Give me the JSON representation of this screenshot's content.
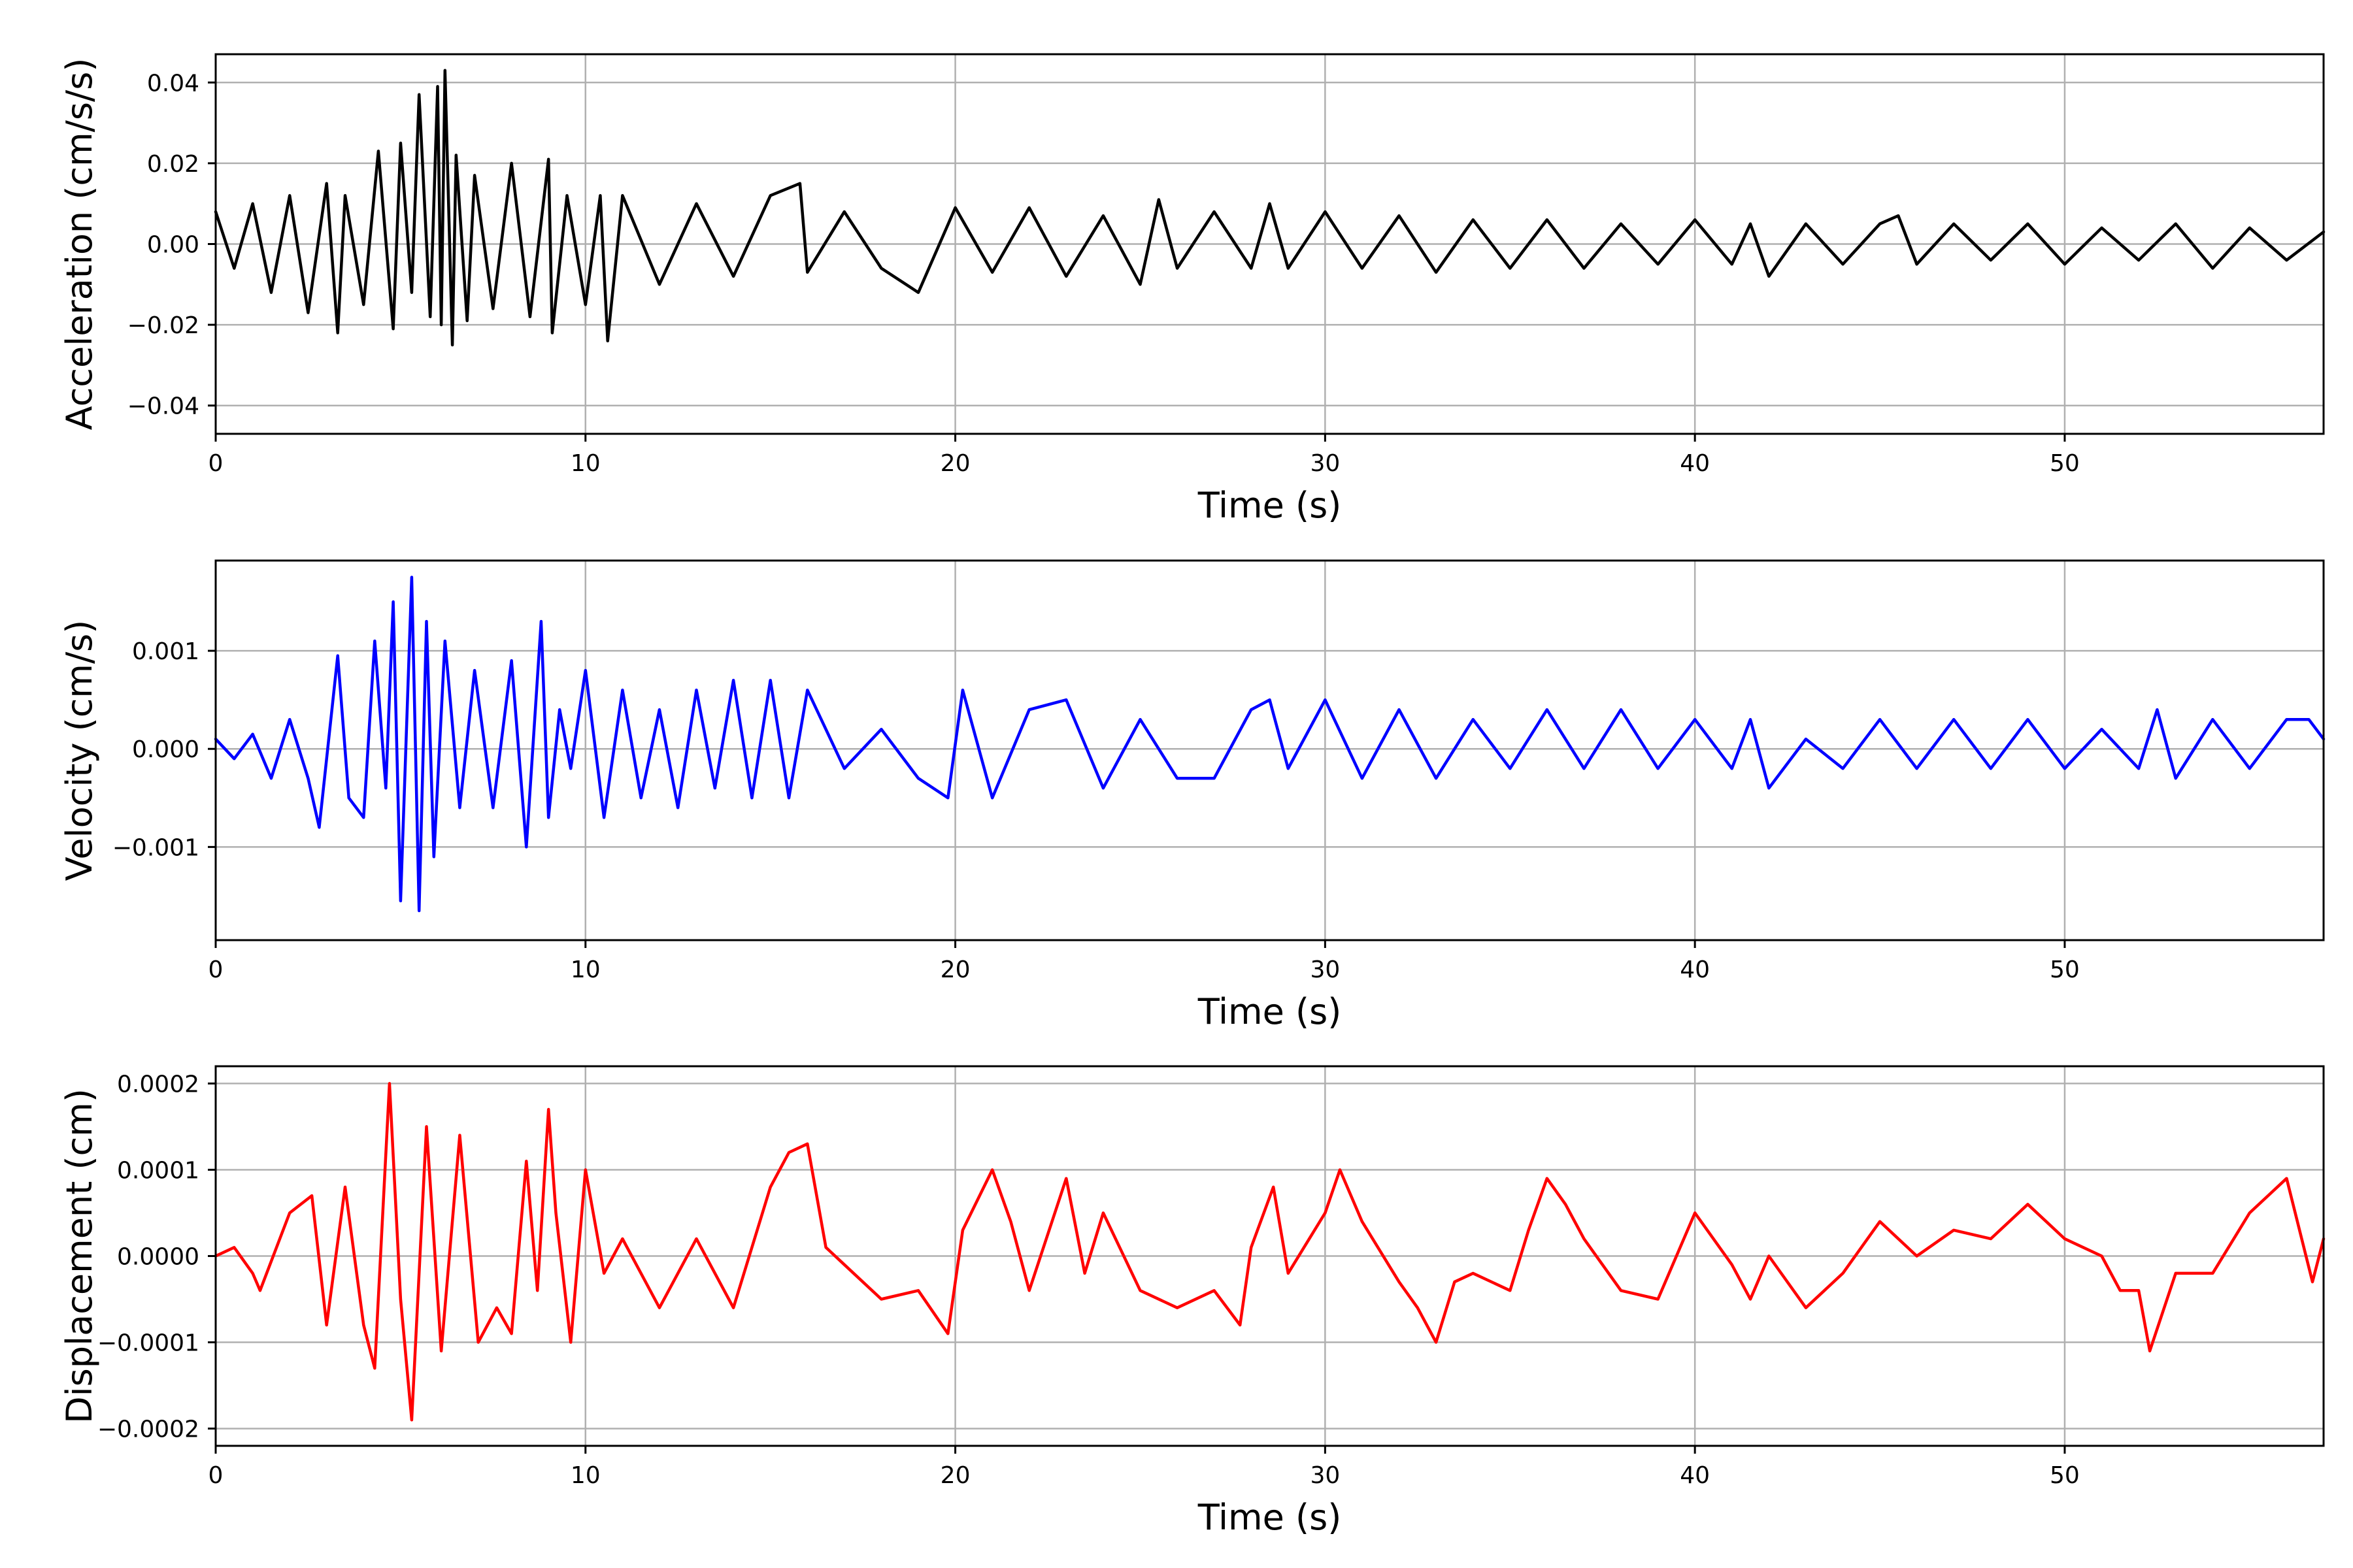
{
  "chart_data": [
    {
      "type": "line",
      "title": "",
      "xlabel": "Time (s)",
      "ylabel": "Acceleration (cm/s/s)",
      "xlim": [
        0,
        57
      ],
      "ylim": [
        -0.047,
        0.047
      ],
      "grid": true,
      "color": "#000000",
      "xticks": [
        0,
        10,
        20,
        30,
        40,
        50
      ],
      "xtick_labels": [
        "0",
        "10",
        "20",
        "30",
        "40",
        "50"
      ],
      "yticks": [
        0.04,
        0.02,
        0.0,
        -0.02,
        -0.04
      ],
      "ytick_labels": [
        "0.04",
        "0.02",
        "0.00",
        "−0.02",
        "−0.04"
      ],
      "series": [
        {
          "x": [
            0,
            0.5,
            1,
            1.5,
            2,
            2.5,
            3,
            3.3,
            3.5,
            4,
            4.4,
            4.8,
            5,
            5.3,
            5.5,
            5.8,
            6,
            6.1,
            6.2,
            6.4,
            6.5,
            6.8,
            7,
            7.5,
            8,
            8.5,
            9,
            9.1,
            9.5,
            10,
            10.4,
            10.6,
            11,
            12,
            13,
            14,
            15,
            15.8,
            16,
            17,
            18,
            19,
            20,
            21,
            22,
            23,
            24,
            25,
            25.5,
            26,
            27,
            28,
            28.5,
            29,
            30,
            31,
            32,
            33,
            34,
            35,
            36,
            37,
            38,
            39,
            40,
            41,
            41.5,
            42,
            43,
            44,
            45,
            45.5,
            46,
            47,
            48,
            49,
            50,
            51,
            52,
            53,
            54,
            55,
            56,
            57
          ],
          "y": [
            0.008,
            -0.006,
            0.01,
            -0.012,
            0.012,
            -0.017,
            0.015,
            -0.022,
            0.012,
            -0.015,
            0.023,
            -0.021,
            0.025,
            -0.012,
            0.037,
            -0.018,
            0.039,
            -0.02,
            0.043,
            -0.025,
            0.022,
            -0.019,
            0.017,
            -0.016,
            0.02,
            -0.018,
            0.021,
            -0.022,
            0.012,
            -0.015,
            0.012,
            -0.024,
            0.012,
            -0.01,
            0.01,
            -0.008,
            0.012,
            0.015,
            -0.007,
            0.008,
            -0.006,
            -0.012,
            0.009,
            -0.007,
            0.009,
            -0.008,
            0.007,
            -0.01,
            0.011,
            -0.006,
            0.008,
            -0.006,
            0.01,
            -0.006,
            0.008,
            -0.006,
            0.007,
            -0.007,
            0.006,
            -0.006,
            0.006,
            -0.006,
            0.005,
            -0.005,
            0.006,
            -0.005,
            0.005,
            -0.008,
            0.005,
            -0.005,
            0.005,
            0.007,
            -0.005,
            0.005,
            -0.004,
            0.005,
            -0.005,
            0.004,
            -0.004,
            0.005,
            -0.006,
            0.004,
            -0.004,
            0.003
          ]
        }
      ]
    },
    {
      "type": "line",
      "title": "",
      "xlabel": "Time (s)",
      "ylabel": "Velocity (cm/s)",
      "xlim": [
        0,
        57
      ],
      "ylim": [
        -0.00195,
        0.00192
      ],
      "grid": true,
      "color": "#0000ff",
      "xticks": [
        0,
        10,
        20,
        30,
        40,
        50
      ],
      "xtick_labels": [
        "0",
        "10",
        "20",
        "30",
        "40",
        "50"
      ],
      "yticks": [
        0.001,
        0.0,
        -0.001
      ],
      "ytick_labels": [
        "0.001",
        "0.000",
        "−0.001"
      ],
      "series": [
        {
          "x": [
            0,
            0.5,
            1,
            1.5,
            2,
            2.5,
            2.8,
            3.3,
            3.6,
            4,
            4.3,
            4.6,
            4.8,
            5.0,
            5.3,
            5.5,
            5.7,
            5.9,
            6.2,
            6.6,
            7,
            7.5,
            8,
            8.4,
            8.8,
            9.0,
            9.3,
            9.6,
            10,
            10.5,
            11,
            11.5,
            12,
            12.5,
            13,
            13.5,
            14,
            14.5,
            15,
            15.5,
            16,
            17,
            18,
            19,
            19.8,
            20.2,
            21,
            22,
            23,
            24,
            25,
            26,
            27,
            28,
            28.5,
            29,
            30,
            31,
            32,
            33,
            34,
            35,
            36,
            37,
            38,
            39,
            40,
            41,
            41.5,
            42,
            43,
            44,
            45,
            46,
            47,
            48,
            49,
            50,
            51,
            52,
            52.5,
            53,
            54,
            55,
            56,
            56.6,
            57
          ],
          "y": [
            0.0001,
            -0.0001,
            0.00015,
            -0.0003,
            0.0003,
            -0.0003,
            -0.0008,
            0.00095,
            -0.0005,
            -0.0007,
            0.0011,
            -0.0004,
            0.0015,
            -0.00155,
            0.00175,
            -0.00165,
            0.0013,
            -0.0011,
            0.0011,
            -0.0006,
            0.0008,
            -0.0006,
            0.0009,
            -0.001,
            0.0013,
            -0.0007,
            0.0004,
            -0.0002,
            0.0008,
            -0.0007,
            0.0006,
            -0.0005,
            0.0004,
            -0.0006,
            0.0006,
            -0.0004,
            0.0007,
            -0.0005,
            0.0007,
            -0.0005,
            0.0006,
            -0.0002,
            0.0002,
            -0.0003,
            -0.0005,
            0.0006,
            -0.0005,
            0.0004,
            0.0005,
            -0.0004,
            0.0003,
            -0.0003,
            -0.0003,
            0.0004,
            0.0005,
            -0.0002,
            0.0005,
            -0.0003,
            0.0004,
            -0.0003,
            0.0003,
            -0.0002,
            0.0004,
            -0.0002,
            0.0004,
            -0.0002,
            0.0003,
            -0.0002,
            0.0003,
            -0.0004,
            0.0001,
            -0.0002,
            0.0003,
            -0.0002,
            0.0003,
            -0.0002,
            0.0003,
            -0.0002,
            0.0002,
            -0.0002,
            0.0004,
            -0.0003,
            0.0003,
            -0.0002,
            0.0003,
            0.0003,
            0.0001
          ]
        }
      ]
    },
    {
      "type": "line",
      "title": "",
      "xlabel": "Time (s)",
      "ylabel": "Displacement (cm)",
      "xlim": [
        0,
        57
      ],
      "ylim": [
        -0.00022,
        0.00022
      ],
      "grid": true,
      "color": "#ff0000",
      "xticks": [
        0,
        10,
        20,
        30,
        40,
        50
      ],
      "xtick_labels": [
        "0",
        "10",
        "20",
        "30",
        "40",
        "50"
      ],
      "yticks": [
        0.0002,
        0.0001,
        0.0,
        -0.0001,
        -0.0002
      ],
      "ytick_labels": [
        "0.0002",
        "0.0001",
        "0.0000",
        "−0.0001",
        "−0.0002"
      ],
      "series": [
        {
          "x": [
            0,
            0.5,
            1,
            1.2,
            2,
            2.6,
            3,
            3.5,
            4,
            4.3,
            4.7,
            5.0,
            5.3,
            5.7,
            6.1,
            6.6,
            7.1,
            7.6,
            8,
            8.4,
            8.7,
            9.0,
            9.2,
            9.6,
            10,
            10.5,
            11,
            12,
            13,
            14,
            15,
            15.5,
            16,
            16.5,
            17,
            18,
            19,
            19.8,
            20.2,
            21,
            21.5,
            22,
            23,
            23.5,
            24,
            25,
            26,
            27,
            27.7,
            28,
            28.6,
            29,
            30,
            30.4,
            31,
            32,
            32.5,
            33,
            33.5,
            34,
            35,
            35.5,
            36,
            36.5,
            37,
            38,
            39,
            40,
            41,
            41.5,
            42,
            43,
            44,
            45,
            46,
            47,
            48,
            49,
            50,
            51,
            51.5,
            52,
            52.3,
            53,
            54,
            55,
            55.5,
            56,
            56.7,
            57
          ],
          "y": [
            0.0,
            1e-05,
            -2e-05,
            -4e-05,
            5e-05,
            7e-05,
            -8e-05,
            8e-05,
            -8e-05,
            -0.00013,
            0.0002,
            -5e-05,
            -0.00019,
            0.00015,
            -0.00011,
            0.00014,
            -0.0001,
            -6e-05,
            -9e-05,
            0.00011,
            -4e-05,
            0.00017,
            5e-05,
            -0.0001,
            0.0001,
            -2e-05,
            2e-05,
            -6e-05,
            2e-05,
            -6e-05,
            8e-05,
            0.00012,
            0.00013,
            1e-05,
            -1e-05,
            -5e-05,
            -4e-05,
            -9e-05,
            3e-05,
            0.0001,
            4e-05,
            -4e-05,
            9e-05,
            -2e-05,
            5e-05,
            -4e-05,
            -6e-05,
            -4e-05,
            -8e-05,
            1e-05,
            8e-05,
            -2e-05,
            5e-05,
            0.0001,
            4e-05,
            -3e-05,
            -6e-05,
            -0.0001,
            -3e-05,
            -2e-05,
            -4e-05,
            3e-05,
            9e-05,
            6e-05,
            2e-05,
            -4e-05,
            -5e-05,
            5e-05,
            -1e-05,
            -5e-05,
            0.0,
            -6e-05,
            -2e-05,
            4e-05,
            0.0,
            3e-05,
            2e-05,
            6e-05,
            2e-05,
            0.0,
            -4e-05,
            -4e-05,
            -0.00011,
            -2e-05,
            -2e-05,
            5e-05,
            7e-05,
            9e-05,
            -3e-05,
            2e-05
          ]
        }
      ]
    }
  ]
}
